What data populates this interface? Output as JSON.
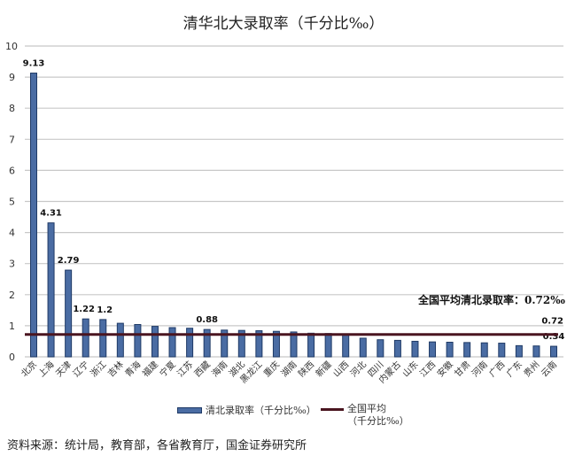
{
  "chart_data": {
    "type": "bar",
    "title": "清华北大录取率（千分比‰）",
    "xlabel": "",
    "ylabel": "",
    "ylim": [
      0,
      10
    ],
    "yticks": [
      0,
      1,
      2,
      3,
      4,
      5,
      6,
      7,
      8,
      9,
      10
    ],
    "grid": true,
    "legend_position": "bottom",
    "categories": [
      "北京",
      "上海",
      "天津",
      "辽宁",
      "浙江",
      "吉林",
      "青海",
      "福建",
      "宁夏",
      "江苏",
      "西藏",
      "海南",
      "湖北",
      "黑龙江",
      "重庆",
      "湖南",
      "陕西",
      "新疆",
      "山西",
      "河北",
      "四川",
      "内蒙古",
      "山东",
      "江西",
      "安徽",
      "甘肃",
      "河南",
      "广西",
      "广东",
      "贵州",
      "云南"
    ],
    "series": [
      {
        "name": "清北录取率（千分比‰）",
        "type": "bar",
        "color": "#4a6ca3",
        "values": [
          9.13,
          4.31,
          2.79,
          1.22,
          1.2,
          1.08,
          1.04,
          0.98,
          0.94,
          0.92,
          0.88,
          0.86,
          0.85,
          0.84,
          0.82,
          0.8,
          0.76,
          0.75,
          0.74,
          0.6,
          0.55,
          0.53,
          0.5,
          0.48,
          0.47,
          0.46,
          0.45,
          0.44,
          0.36,
          0.35,
          0.34
        ]
      },
      {
        "name": "全国平均（千分比‰）",
        "type": "line",
        "color": "#4a1520",
        "values": [
          0.72
        ]
      }
    ],
    "data_labels": [
      {
        "category": "北京",
        "text": "9.13"
      },
      {
        "category": "上海",
        "text": "4.31"
      },
      {
        "category": "天津",
        "text": "2.79"
      },
      {
        "category": "辽宁",
        "text": "1.22"
      },
      {
        "category": "浙江",
        "text": "1.2"
      },
      {
        "category": "西藏",
        "text": "0.88"
      },
      {
        "category": "云南",
        "text": "0.34"
      },
      {
        "category": "average",
        "text": "0.72"
      }
    ],
    "annotations": [
      "全国平均清北录取率：0.72‰"
    ]
  },
  "title": "清华北大录取率（千分比‰）",
  "annotation": "全国平均清北录取率：0.72‰",
  "legend": {
    "bar_label": "清北录取率（千分比‰）",
    "line_label_1": "全国平均",
    "line_label_2": "（千分比‰）"
  },
  "source": "资料来源：统计局，教育部，各省教育厅，国金证券研究所"
}
